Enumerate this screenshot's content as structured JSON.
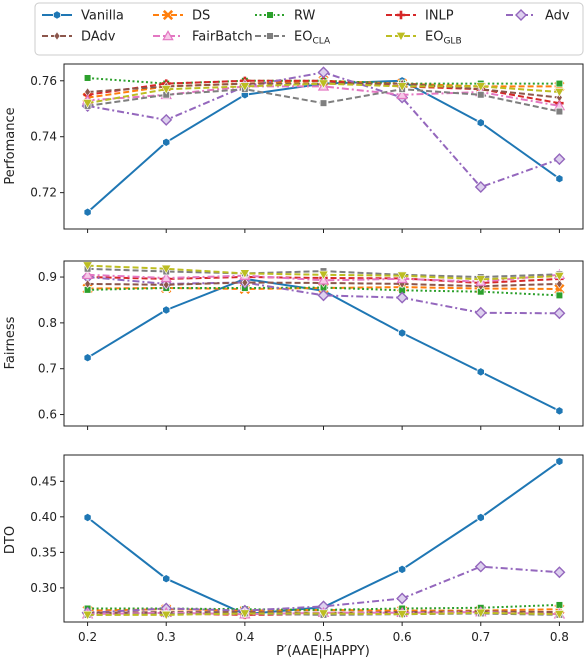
{
  "chart_data": [
    {
      "type": "line",
      "ylabel": "Perfomance",
      "ylim": [
        0.707,
        0.766
      ],
      "yticks": [
        0.72,
        0.74,
        0.76
      ],
      "ytick_labels": [
        "0.72",
        "0.74",
        "0.76"
      ],
      "x": [
        0.2,
        0.3,
        0.4,
        0.5,
        0.6,
        0.7,
        0.8
      ],
      "series": [
        {
          "key": "vanilla",
          "values": [
            0.713,
            0.738,
            0.755,
            0.759,
            0.76,
            0.745,
            0.725
          ]
        },
        {
          "key": "ds",
          "values": [
            0.754,
            0.758,
            0.759,
            0.76,
            0.759,
            0.758,
            0.758
          ]
        },
        {
          "key": "rw",
          "values": [
            0.761,
            0.759,
            0.76,
            0.76,
            0.759,
            0.759,
            0.759
          ]
        },
        {
          "key": "inlp",
          "values": [
            0.755,
            0.759,
            0.76,
            0.76,
            0.758,
            0.757,
            0.752
          ]
        },
        {
          "key": "adv",
          "values": [
            0.751,
            0.746,
            0.758,
            0.763,
            0.754,
            0.722,
            0.732
          ]
        },
        {
          "key": "dadv",
          "values": [
            0.756,
            0.758,
            0.759,
            0.759,
            0.759,
            0.757,
            0.754
          ]
        },
        {
          "key": "fairbatch",
          "values": [
            0.753,
            0.755,
            0.758,
            0.758,
            0.755,
            0.756,
            0.751
          ]
        },
        {
          "key": "eocla",
          "values": [
            0.751,
            0.755,
            0.757,
            0.752,
            0.757,
            0.755,
            0.749
          ]
        },
        {
          "key": "eoglb",
          "values": [
            0.752,
            0.757,
            0.758,
            0.759,
            0.758,
            0.758,
            0.756
          ]
        }
      ]
    },
    {
      "type": "line",
      "ylabel": "Fairness",
      "ylim": [
        0.575,
        0.935
      ],
      "yticks": [
        0.6,
        0.7,
        0.8,
        0.9
      ],
      "ytick_labels": [
        "0.6",
        "0.7",
        "0.8",
        "0.9"
      ],
      "x": [
        0.2,
        0.3,
        0.4,
        0.5,
        0.6,
        0.7,
        0.8
      ],
      "series": [
        {
          "key": "vanilla",
          "values": [
            0.724,
            0.828,
            0.896,
            0.87,
            0.778,
            0.693,
            0.608
          ]
        },
        {
          "key": "ds",
          "values": [
            0.875,
            0.876,
            0.874,
            0.876,
            0.878,
            0.875,
            0.874
          ]
        },
        {
          "key": "rw",
          "values": [
            0.872,
            0.876,
            0.876,
            0.877,
            0.871,
            0.868,
            0.86
          ]
        },
        {
          "key": "inlp",
          "values": [
            0.9,
            0.896,
            0.9,
            0.898,
            0.897,
            0.887,
            0.896
          ]
        },
        {
          "key": "adv",
          "values": [
            0.9,
            0.885,
            0.888,
            0.86,
            0.855,
            0.822,
            0.821
          ]
        },
        {
          "key": "dadv",
          "values": [
            0.885,
            0.883,
            0.888,
            0.887,
            0.885,
            0.88,
            0.885
          ]
        },
        {
          "key": "fairbatch",
          "values": [
            0.905,
            0.898,
            0.903,
            0.893,
            0.896,
            0.89,
            0.905
          ]
        },
        {
          "key": "eocla",
          "values": [
            0.918,
            0.912,
            0.908,
            0.913,
            0.905,
            0.9,
            0.906
          ]
        },
        {
          "key": "eoglb",
          "values": [
            0.925,
            0.918,
            0.908,
            0.905,
            0.903,
            0.895,
            0.902
          ]
        }
      ]
    },
    {
      "type": "line",
      "ylabel": "DTO",
      "xlabel": "P′(AAE|HAPPY)",
      "ylim": [
        0.252,
        0.487
      ],
      "yticks": [
        0.25,
        0.3,
        0.35,
        0.4,
        0.45
      ],
      "ytick_labels": [
        "0.25",
        "0.30",
        "0.35",
        "0.40",
        "0.45"
      ],
      "x": [
        0.2,
        0.3,
        0.4,
        0.5,
        0.6,
        0.7,
        0.8
      ],
      "xtick_labels": [
        "0.2",
        "0.3",
        "0.4",
        "0.5",
        "0.6",
        "0.7",
        "0.8"
      ],
      "series": [
        {
          "key": "vanilla",
          "values": [
            0.399,
            0.313,
            0.263,
            0.273,
            0.326,
            0.399,
            0.478
          ]
        },
        {
          "key": "ds",
          "values": [
            0.268,
            0.27,
            0.268,
            0.269,
            0.268,
            0.268,
            0.27
          ]
        },
        {
          "key": "rw",
          "values": [
            0.271,
            0.271,
            0.27,
            0.269,
            0.271,
            0.272,
            0.276
          ]
        },
        {
          "key": "inlp",
          "values": [
            0.263,
            0.264,
            0.262,
            0.263,
            0.264,
            0.266,
            0.265
          ]
        },
        {
          "key": "adv",
          "values": [
            0.265,
            0.271,
            0.268,
            0.274,
            0.285,
            0.33,
            0.322
          ]
        },
        {
          "key": "dadv",
          "values": [
            0.265,
            0.266,
            0.266,
            0.265,
            0.266,
            0.267,
            0.266
          ]
        },
        {
          "key": "fairbatch",
          "values": [
            0.263,
            0.265,
            0.263,
            0.265,
            0.265,
            0.266,
            0.263
          ]
        },
        {
          "key": "eocla",
          "values": [
            0.262,
            0.263,
            0.264,
            0.262,
            0.263,
            0.264,
            0.262
          ]
        },
        {
          "key": "eoglb",
          "values": [
            0.262,
            0.262,
            0.264,
            0.264,
            0.263,
            0.265,
            0.263
          ]
        }
      ]
    }
  ],
  "legend": {
    "placement": "top",
    "entries": [
      {
        "key": "vanilla",
        "label": "Vanilla",
        "sub": "",
        "color": "#1f77b4",
        "marker": "hexagon",
        "dash": "solid"
      },
      {
        "key": "ds",
        "label": "DS",
        "sub": "",
        "color": "#ff7f0e",
        "marker": "x",
        "dash": "dash"
      },
      {
        "key": "rw",
        "label": "RW",
        "sub": "",
        "color": "#2ca02c",
        "marker": "square",
        "dash": "dot"
      },
      {
        "key": "inlp",
        "label": "INLP",
        "sub": "",
        "color": "#d62728",
        "marker": "plus",
        "dash": "dash"
      },
      {
        "key": "adv",
        "label": "Adv",
        "sub": "",
        "color": "#9467bd",
        "marker": "diamond",
        "dash": "dashdot"
      },
      {
        "key": "dadv",
        "label": "DAdv",
        "sub": "",
        "color": "#8c564b",
        "marker": "thin-diamond",
        "dash": "dash"
      },
      {
        "key": "fairbatch",
        "label": "FairBatch",
        "sub": "",
        "color": "#e377c2",
        "marker": "triangle-up",
        "dash": "dashdot"
      },
      {
        "key": "eocla",
        "label": "EO",
        "sub": "CLA",
        "color": "#7f7f7f",
        "marker": "square",
        "dash": "dash"
      },
      {
        "key": "eoglb",
        "label": "EO",
        "sub": "GLB",
        "color": "#bcbd22",
        "marker": "triangle-down",
        "dash": "dash"
      }
    ]
  }
}
